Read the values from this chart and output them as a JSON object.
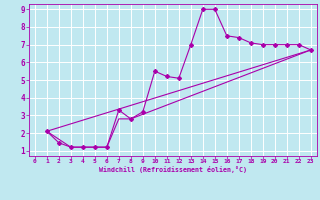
{
  "xlabel": "Windchill (Refroidissement éolien,°C)",
  "bg_color": "#c0e8f0",
  "line_color": "#aa00aa",
  "grid_color": "#ffffff",
  "xlim": [
    -0.5,
    23.5
  ],
  "ylim": [
    0.7,
    9.3
  ],
  "xticks": [
    0,
    1,
    2,
    3,
    4,
    5,
    6,
    7,
    8,
    9,
    10,
    11,
    12,
    13,
    14,
    15,
    16,
    17,
    18,
    19,
    20,
    21,
    22,
    23
  ],
  "yticks": [
    1,
    2,
    3,
    4,
    5,
    6,
    7,
    8,
    9
  ],
  "series1_x": [
    1,
    2,
    3,
    4,
    5,
    6,
    7,
    8,
    9,
    10,
    11,
    12,
    13,
    14,
    15,
    16,
    17,
    18,
    19,
    20,
    21,
    22,
    23
  ],
  "series1_y": [
    2.1,
    1.45,
    1.2,
    1.2,
    1.2,
    1.2,
    3.3,
    2.8,
    3.2,
    5.5,
    5.2,
    5.1,
    7.0,
    9.0,
    9.0,
    7.5,
    7.4,
    7.1,
    7.0,
    7.0,
    7.0,
    7.0,
    6.7
  ],
  "series2_x": [
    1,
    3,
    4,
    5,
    6,
    7,
    8,
    23
  ],
  "series2_y": [
    2.1,
    1.2,
    1.2,
    1.2,
    1.2,
    2.8,
    2.8,
    6.7
  ],
  "series3_x": [
    1,
    23
  ],
  "series3_y": [
    2.1,
    6.7
  ]
}
